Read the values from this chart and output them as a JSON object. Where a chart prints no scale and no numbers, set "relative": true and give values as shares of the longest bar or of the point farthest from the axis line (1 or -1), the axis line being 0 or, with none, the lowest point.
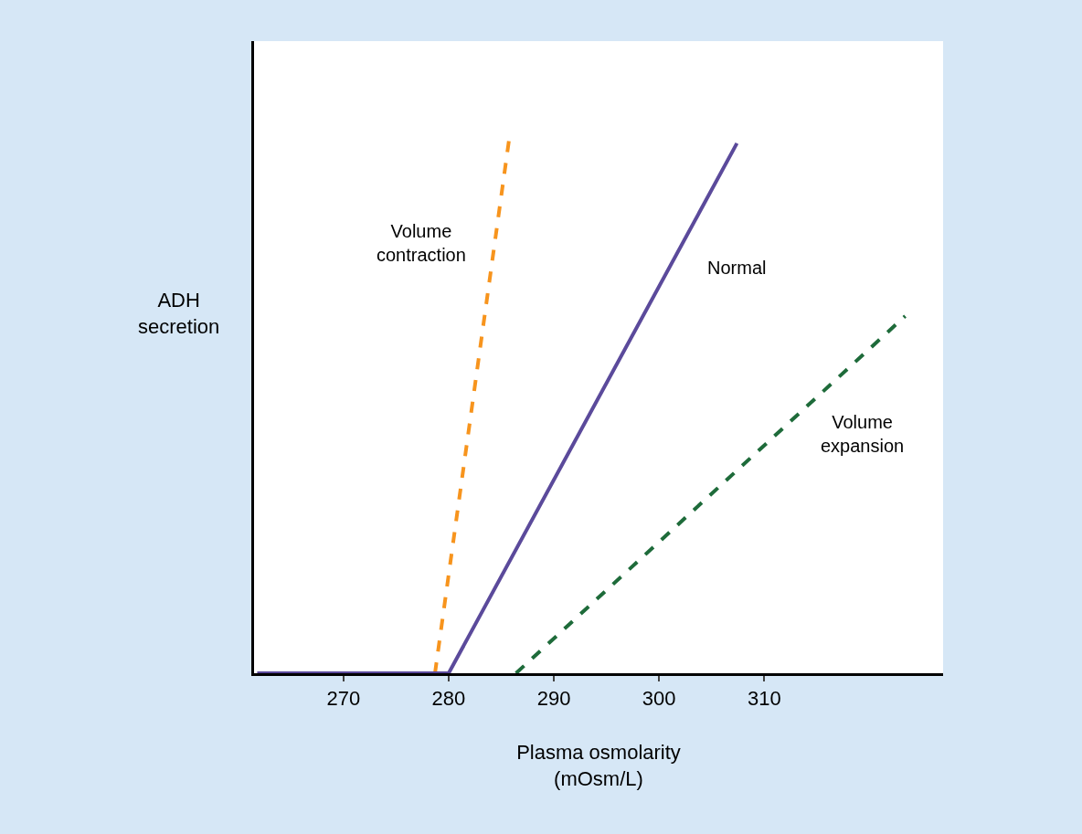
{
  "chart_data": {
    "type": "line",
    "relative": true,
    "xlabel": "Plasma osmolarity\n(mOsm/L)",
    "ylabel": "ADH\nsecretion",
    "xlim": [
      261.5,
      327
    ],
    "xticks": [
      270,
      280,
      290,
      300,
      310
    ],
    "legend": false,
    "marker": "none",
    "series": [
      {
        "name": "Volume\ncontraction",
        "x": [
          278.7,
          285.8
        ],
        "values": [
          0,
          1
        ],
        "color": "#f7941d",
        "line_style": "dashed"
      },
      {
        "name": "Normal",
        "x": [
          261.8,
          280,
          307.4
        ],
        "values": [
          0,
          0,
          0.985
        ],
        "color": "#5b4a9b",
        "line_style": "solid"
      },
      {
        "name": "Volume\nexpansion",
        "x": [
          286.4,
          323.4
        ],
        "values": [
          0,
          0.664
        ],
        "color": "#1e6b3a",
        "line_style": "dashed"
      }
    ]
  }
}
